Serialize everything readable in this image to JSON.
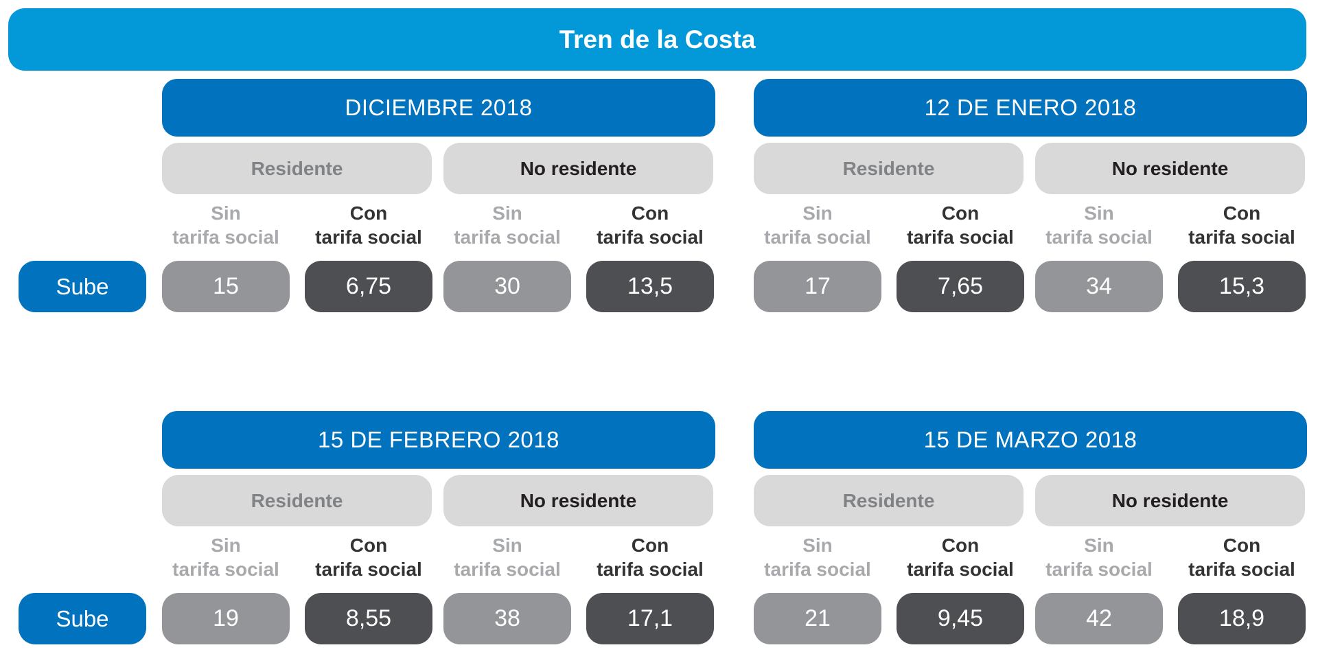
{
  "title": "Tren de la Costa",
  "colors": {
    "title_bar": "#0398d7",
    "period_header": "#0172be",
    "group_pill": "#d9d9d9",
    "value_light": "#939598",
    "value_dark": "#4d4f52"
  },
  "group_labels": {
    "resident": "Residente",
    "nonresident": "No residente"
  },
  "column_labels": {
    "sin_line1": "Sin",
    "sin_line2": "tarifa social",
    "con_line1": "Con",
    "con_line2": "tarifa social"
  },
  "row_label": "Sube",
  "periods": [
    {
      "title": "DICIEMBRE 2018",
      "values": [
        "15",
        "6,75",
        "30",
        "13,5"
      ]
    },
    {
      "title": "12 DE ENERO 2018",
      "values": [
        "17",
        "7,65",
        "34",
        "15,3"
      ]
    },
    {
      "title": "15 DE FEBRERO 2018",
      "values": [
        "19",
        "8,55",
        "38",
        "17,1"
      ]
    },
    {
      "title": "15 DE MARZO 2018",
      "values": [
        "21",
        "9,45",
        "42",
        "18,9"
      ]
    }
  ]
}
